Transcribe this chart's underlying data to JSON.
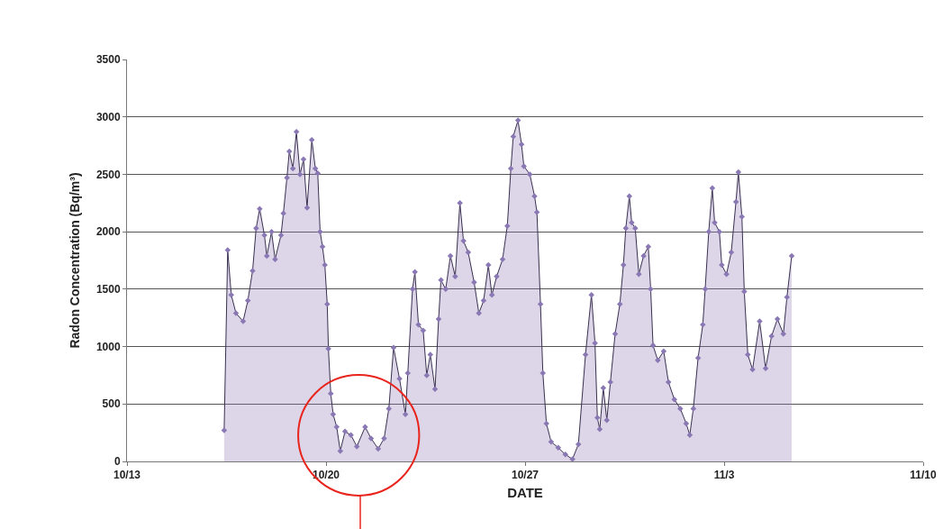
{
  "chart_data": {
    "type": "area",
    "xlabel": "DATE",
    "ylabel": "Radon Concentration (Bq/m³)",
    "x": [
      "--10-16T10:00",
      "--10-16T13:00",
      "--10-16T16:00",
      "--10-16T20:00",
      "--10-17T02:00",
      "--10-17T06:00",
      "--10-17T10:00",
      "--10-17T13:00",
      "--10-17T16:00",
      "--10-17T20:00",
      "--10-17T22:00",
      "--10-18T02:00",
      "--10-18T05:00",
      "--10-18T10:00",
      "--10-18T12:00",
      "--10-18T15:00",
      "--10-18T17:00",
      "--10-18T20:00",
      "--10-18T23:00",
      "--10-19T02:00",
      "--10-19T05:00",
      "--10-19T08:00",
      "--10-19T12:00",
      "--10-19T15:00",
      "--10-19T17:00",
      "--10-19T19:00",
      "--10-19T21:00",
      "--10-19T23:00",
      "--10-20T01:00",
      "--10-20T02:00",
      "--10-20T04:00",
      "--10-20T06:00",
      "--10-20T09:00",
      "--10-20T12:00",
      "--10-20T16:00",
      "--10-20T21:00",
      "--10-21T02:00",
      "--10-21T09:00",
      "--10-21T14:00",
      "--10-21T20:00",
      "--10-22T01:00",
      "--10-22T05:00",
      "--10-22T09:00",
      "--10-22T14:00",
      "--10-22T19:00",
      "--10-22T21:00",
      "--10-23T01:00",
      "--10-23T03:00",
      "--10-23T06:00",
      "--10-23T10:00",
      "--10-23T13:00",
      "--10-23T16:00",
      "--10-23T20:00",
      "--10-23T23:00",
      "--10-24T01:00",
      "--10-24T05:00",
      "--10-24T09:00",
      "--10-24T13:00",
      "--10-24T17:00",
      "--10-24T20:00",
      "--10-25T00:00",
      "--10-25T05:00",
      "--10-25T09:00",
      "--10-25T13:00",
      "--10-25T17:00",
      "--10-25T20:00",
      "--10-26T00:00",
      "--10-26T05:00",
      "--10-26T09:00",
      "--10-26T12:00",
      "--10-26T14:00",
      "--10-26T18:00",
      "--10-26T21:00",
      "--10-26T23:00",
      "--10-27T04:00",
      "--10-27T08:00",
      "--10-27T10:00",
      "--10-27T13:00",
      "--10-27T15:00",
      "--10-27T18:00",
      "--10-27T22:00",
      "--10-28T04:00",
      "--10-28T10:00",
      "--10-28T16:00",
      "--10-28T21:00",
      "--10-29T03:00",
      "--10-29T08:00",
      "--10-29T11:00",
      "--10-29T13:00",
      "--10-29T15:00",
      "--10-29T18:00",
      "--10-29T21:00",
      "--10-30T00:00",
      "--10-30T04:00",
      "--10-30T08:00",
      "--10-30T11:00",
      "--10-30T13:00",
      "--10-30T16:00",
      "--10-30T18:00",
      "--10-30T21:00",
      "--10-31T00:00",
      "--10-31T04:00",
      "--10-31T08:00",
      "--10-31T10:00",
      "--10-31T12:00",
      "--10-31T16:00",
      "--10-31T21:00",
      "--11-01T01:00",
      "--11-01T06:00",
      "--11-01T11:00",
      "--11-01T16:00",
      "--11-01T19:00",
      "--11-01T22:00",
      "--11-02T02:00",
      "--11-02T06:00",
      "--11-02T08:00",
      "--11-02T11:00",
      "--11-02T14:00",
      "--11-02T16:00",
      "--11-02T20:00",
      "--11-02T22:00",
      "--11-03T02:00",
      "--11-03T06:00",
      "--11-03T10:00",
      "--11-03T12:00",
      "--11-03T15:00",
      "--11-03T17:00",
      "--11-03T20:00",
      "--11-04T00:00",
      "--11-04T06:00",
      "--11-04T11:00",
      "--11-04T16:00",
      "--11-04T21:00",
      "--11-05T02:00",
      "--11-05T05:00",
      "--11-05T09:00"
    ],
    "series": [
      {
        "color": "#8a78b4",
        "values": [
          270,
          1840,
          1450,
          1290,
          1220,
          1400,
          1660,
          2030,
          2200,
          1970,
          1790,
          2000,
          1760,
          1970,
          2160,
          2470,
          2700,
          2550,
          2870,
          2500,
          2630,
          2210,
          2800,
          2550,
          2510,
          2000,
          1870,
          1710,
          1370,
          980,
          590,
          410,
          300,
          90,
          260,
          230,
          130,
          300,
          200,
          110,
          200,
          460,
          990,
          720,
          410,
          770,
          1500,
          1650,
          1190,
          1140,
          750,
          930,
          630,
          1240,
          1580,
          1500,
          1790,
          1610,
          2250,
          1920,
          1820,
          1560,
          1290,
          1400,
          1710,
          1450,
          1610,
          1760,
          2050,
          2550,
          2830,
          2970,
          2760,
          2570,
          2500,
          2310,
          2170,
          1370,
          770,
          330,
          170,
          120,
          60,
          20,
          150,
          930,
          1450,
          1030,
          380,
          280,
          640,
          360,
          690,
          1110,
          1370,
          1710,
          2030,
          2310,
          2080,
          2030,
          1630,
          1790,
          1870,
          1500,
          1010,
          880,
          960,
          690,
          540,
          460,
          330,
          230,
          460,
          900,
          1190,
          1500,
          2000,
          2380,
          2080,
          2000,
          1710,
          1630,
          1820,
          2260,
          2520,
          2130,
          1480,
          930,
          800,
          1220,
          810,
          1090,
          1240,
          1110,
          1430,
          1790
        ]
      }
    ],
    "xlim": [
      "--10-13",
      "--11-10"
    ],
    "xticks": [
      {
        "value": "--10-13",
        "label": "10/13"
      },
      {
        "value": "--10-20",
        "label": "10/20"
      },
      {
        "value": "--10-27",
        "label": "10/27"
      },
      {
        "value": "--11-03",
        "label": "11/3"
      },
      {
        "value": "--11-10",
        "label": "11/10"
      }
    ],
    "ylim": [
      0,
      3500
    ],
    "yticks": [
      0,
      500,
      1000,
      1500,
      2000,
      2500,
      3000,
      3500
    ],
    "grid": "y",
    "marker": "diamond",
    "line_style": "solid"
  }
}
